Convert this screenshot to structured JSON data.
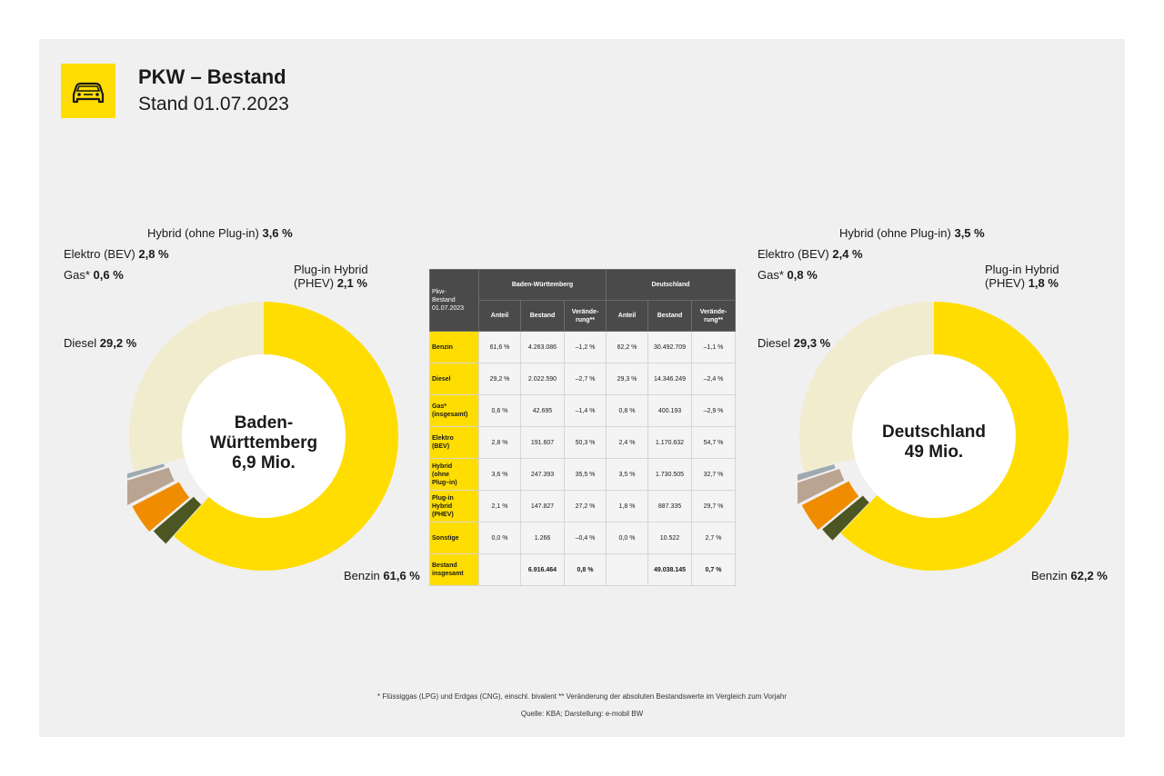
{
  "header": {
    "title": "PKW – Bestand",
    "subtitle": "Stand 01.07.2023",
    "logo_icon": "car-icon"
  },
  "colors": {
    "benzin": "#ffdd00",
    "diesel": "#f2ecce",
    "gas": "#9fa9b0",
    "elektro": "#b9a391",
    "hybrid": "#f08c00",
    "phev": "#4c5623",
    "accent": "#ffdd00",
    "table_header": "#4a4a4a"
  },
  "chart_data": [
    {
      "type": "pie",
      "variant": "donut",
      "center_label": [
        "Baden-",
        "Württemberg",
        "6,9 Mio."
      ],
      "slices": [
        {
          "key": "benzin",
          "name": "Benzin",
          "value": 61.6,
          "label": "61,6 %"
        },
        {
          "key": "diesel",
          "name": "Diesel",
          "value": 29.2,
          "label": "29,2 %"
        },
        {
          "key": "gas",
          "name": "Gas*",
          "value": 0.6,
          "label": "0,6 %"
        },
        {
          "key": "elektro",
          "name": "Elektro (BEV)",
          "value": 2.8,
          "label": "2,8 %"
        },
        {
          "key": "hybrid",
          "name": "Hybrid (ohne Plug-in)",
          "value": 3.6,
          "label": "3,6 %"
        },
        {
          "key": "phev",
          "name": "Plug-in Hybrid",
          "name2": "(PHEV)",
          "value": 2.1,
          "label": "2,1 %"
        }
      ]
    },
    {
      "type": "pie",
      "variant": "donut",
      "center_label": [
        "Deutschland",
        "49 Mio."
      ],
      "slices": [
        {
          "key": "benzin",
          "name": "Benzin",
          "value": 62.2,
          "label": "62,2 %"
        },
        {
          "key": "diesel",
          "name": "Diesel",
          "value": 29.3,
          "label": "29,3 %"
        },
        {
          "key": "gas",
          "name": "Gas*",
          "value": 0.8,
          "label": "0,8 %"
        },
        {
          "key": "elektro",
          "name": "Elektro (BEV)",
          "value": 2.4,
          "label": "2,4 %"
        },
        {
          "key": "hybrid",
          "name": "Hybrid (ohne Plug-in)",
          "value": 3.5,
          "label": "3,5 %"
        },
        {
          "key": "phev",
          "name": "Plug-in Hybrid",
          "name2": "(PHEV)",
          "value": 1.8,
          "label": "1,8 %"
        }
      ]
    },
    {
      "type": "table",
      "corner": [
        "Pkw-",
        "Bestand",
        "01.07.2023"
      ],
      "groups": [
        "Baden-Württemberg",
        "Deutschland"
      ],
      "subheaders": [
        [
          "Anteil"
        ],
        [
          "Bestand"
        ],
        [
          "Verände-",
          "rung**"
        ],
        [
          "Anteil"
        ],
        [
          "Bestand"
        ],
        [
          "Verände-",
          "rung**"
        ]
      ],
      "rows": [
        {
          "label": [
            "Benzin"
          ],
          "cells": [
            "61,6 %",
            "4.263.086",
            "–1,2 %",
            "62,2 %",
            "30.492.709",
            "–1,1 %"
          ]
        },
        {
          "label": [
            "Diesel"
          ],
          "cells": [
            "29,2 %",
            "2.022.590",
            "–2,7 %",
            "29,3 %",
            "14.346.249",
            "–2,4 %"
          ]
        },
        {
          "label": [
            "Gas*",
            "(insgesamt)"
          ],
          "cells": [
            "0,6 %",
            "42.695",
            "–1,4 %",
            "0,8 %",
            "400.193",
            "–2,9 %"
          ]
        },
        {
          "label": [
            "Elektro",
            "(BEV)"
          ],
          "cells": [
            "2,8 %",
            "191.607",
            "50,3 %",
            "2,4 %",
            "1.170.632",
            "54,7 %"
          ]
        },
        {
          "label": [
            "Hybrid",
            "(ohne",
            "Plug–in)"
          ],
          "cells": [
            "3,6 %",
            "247.393",
            "35,5 %",
            "3,5 %",
            "1.730.505",
            "32,7 %"
          ]
        },
        {
          "label": [
            "Plug-in",
            "Hybrid",
            "(PHEV)"
          ],
          "cells": [
            "2,1 %",
            "147.827",
            "27,2 %",
            "1,8 %",
            "887.335",
            "29,7 %"
          ]
        },
        {
          "label": [
            "Sonstige"
          ],
          "cells": [
            "0,0 %",
            "1.266",
            "–0,4 %",
            "0,0 %",
            "10.522",
            "2,7 %"
          ]
        },
        {
          "label": [
            "Bestand",
            "insgesamt"
          ],
          "cells": [
            "",
            "6.916.464",
            "0,8 %",
            "",
            "49.038.145",
            "0,7 %"
          ],
          "total": true
        }
      ]
    }
  ],
  "footnotes": {
    "line1": "* Flüssiggas (LPG) und Erdgas (CNG), einschl. bivalent ** Veränderung der absoluten Bestandswerte im Vergleich zum Vorjahr",
    "line2": "Quelle: KBA; Darstellung: e-mobil BW"
  }
}
